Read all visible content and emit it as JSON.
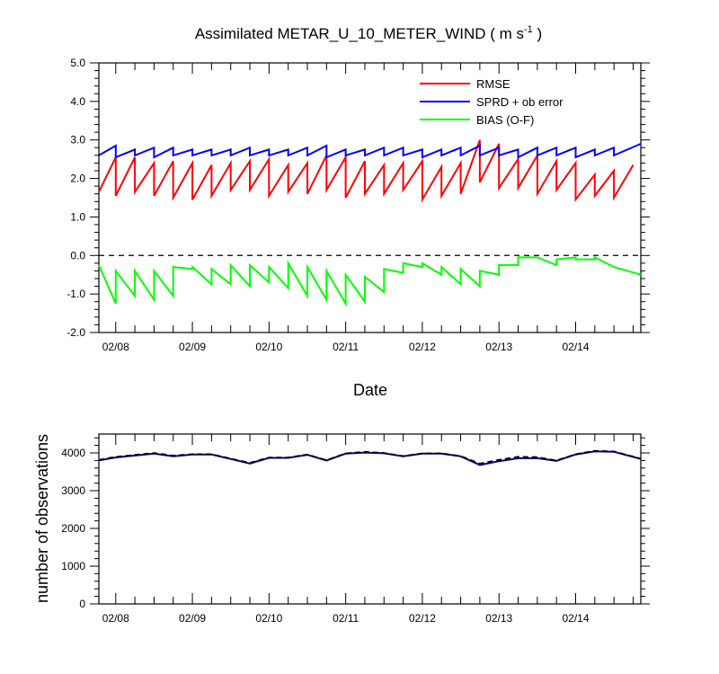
{
  "colors": {
    "rmse": "#ff0000",
    "sprd": "#0000ff",
    "bias": "#00ff00",
    "count": "#000080",
    "axis": "#000000"
  },
  "chart_data": [
    {
      "type": "line",
      "title": "Assimilated METAR_U_10_METER_WIND ( m s",
      "title_superscript": "-1",
      "title_close": " )",
      "xlabel": "Date",
      "ylabel": "",
      "ylim": [
        -2.0,
        5.0
      ],
      "xlim": [
        7.78,
        14.85
      ],
      "x_tick_labels": [
        "02/08",
        "02/09",
        "02/10",
        "02/11",
        "02/12",
        "02/13",
        "02/14"
      ],
      "x_tick_values": [
        8,
        9,
        10,
        11,
        12,
        13,
        14
      ],
      "y_tick_labels": [
        "5.0",
        "4.0",
        "3.0",
        "2.0",
        "1.0",
        "0.0",
        "-1.0",
        "-2.0"
      ],
      "y_tick_values": [
        5,
        4,
        3,
        2,
        1,
        0,
        -1,
        -2
      ],
      "zero_line": true,
      "legend_position": "top-right",
      "series": [
        {
          "name": "RMSE",
          "key": "rmse",
          "points": [
            [
              7.78,
              1.65
            ],
            [
              8.0,
              2.55
            ],
            [
              8.0,
              1.55
            ],
            [
              8.25,
              2.55
            ],
            [
              8.25,
              1.65
            ],
            [
              8.5,
              2.4
            ],
            [
              8.5,
              1.55
            ],
            [
              8.75,
              2.45
            ],
            [
              8.75,
              1.5
            ],
            [
              9.0,
              2.4
            ],
            [
              9.0,
              1.45
            ],
            [
              9.25,
              2.35
            ],
            [
              9.25,
              1.55
            ],
            [
              9.5,
              2.4
            ],
            [
              9.5,
              1.7
            ],
            [
              9.75,
              2.45
            ],
            [
              9.75,
              1.7
            ],
            [
              10.0,
              2.5
            ],
            [
              10.0,
              1.55
            ],
            [
              10.25,
              2.35
            ],
            [
              10.25,
              1.65
            ],
            [
              10.5,
              2.4
            ],
            [
              10.5,
              1.6
            ],
            [
              10.75,
              2.6
            ],
            [
              10.75,
              1.7
            ],
            [
              11.0,
              2.55
            ],
            [
              11.0,
              1.5
            ],
            [
              11.25,
              2.45
            ],
            [
              11.25,
              1.6
            ],
            [
              11.5,
              2.35
            ],
            [
              11.5,
              1.6
            ],
            [
              11.75,
              2.4
            ],
            [
              11.75,
              1.7
            ],
            [
              12.0,
              2.45
            ],
            [
              12.0,
              1.45
            ],
            [
              12.25,
              2.3
            ],
            [
              12.25,
              1.55
            ],
            [
              12.5,
              2.4
            ],
            [
              12.5,
              1.6
            ],
            [
              12.75,
              3.0
            ],
            [
              12.75,
              1.9
            ],
            [
              13.0,
              2.9
            ],
            [
              13.0,
              1.75
            ],
            [
              13.25,
              2.5
            ],
            [
              13.25,
              1.75
            ],
            [
              13.5,
              2.6
            ],
            [
              13.5,
              1.6
            ],
            [
              13.75,
              2.45
            ],
            [
              13.75,
              1.7
            ],
            [
              14.0,
              2.4
            ],
            [
              14.0,
              1.45
            ],
            [
              14.25,
              2.1
            ],
            [
              14.25,
              1.55
            ],
            [
              14.5,
              2.2
            ],
            [
              14.5,
              1.5
            ],
            [
              14.75,
              2.35
            ]
          ]
        },
        {
          "name": "SPRD + ob error",
          "key": "sprd",
          "points": [
            [
              7.78,
              2.6
            ],
            [
              8.0,
              2.85
            ],
            [
              8.0,
              2.55
            ],
            [
              8.25,
              2.75
            ],
            [
              8.25,
              2.6
            ],
            [
              8.5,
              2.8
            ],
            [
              8.5,
              2.55
            ],
            [
              8.75,
              2.8
            ],
            [
              8.75,
              2.6
            ],
            [
              9.0,
              2.75
            ],
            [
              9.0,
              2.6
            ],
            [
              9.25,
              2.75
            ],
            [
              9.25,
              2.6
            ],
            [
              9.5,
              2.75
            ],
            [
              9.5,
              2.6
            ],
            [
              9.75,
              2.8
            ],
            [
              9.75,
              2.6
            ],
            [
              10.0,
              2.75
            ],
            [
              10.0,
              2.6
            ],
            [
              10.25,
              2.75
            ],
            [
              10.25,
              2.6
            ],
            [
              10.5,
              2.8
            ],
            [
              10.5,
              2.6
            ],
            [
              10.75,
              2.85
            ],
            [
              10.75,
              2.55
            ],
            [
              11.0,
              2.75
            ],
            [
              11.0,
              2.6
            ],
            [
              11.25,
              2.75
            ],
            [
              11.25,
              2.6
            ],
            [
              11.5,
              2.8
            ],
            [
              11.5,
              2.6
            ],
            [
              11.75,
              2.8
            ],
            [
              11.75,
              2.6
            ],
            [
              12.0,
              2.75
            ],
            [
              12.0,
              2.55
            ],
            [
              12.25,
              2.75
            ],
            [
              12.25,
              2.6
            ],
            [
              12.5,
              2.8
            ],
            [
              12.5,
              2.6
            ],
            [
              12.75,
              2.85
            ],
            [
              12.75,
              2.6
            ],
            [
              13.0,
              2.8
            ],
            [
              13.0,
              2.6
            ],
            [
              13.25,
              2.75
            ],
            [
              13.25,
              2.55
            ],
            [
              13.5,
              2.8
            ],
            [
              13.5,
              2.6
            ],
            [
              13.75,
              2.8
            ],
            [
              13.75,
              2.6
            ],
            [
              14.0,
              2.8
            ],
            [
              14.0,
              2.55
            ],
            [
              14.25,
              2.75
            ],
            [
              14.25,
              2.6
            ],
            [
              14.5,
              2.8
            ],
            [
              14.5,
              2.6
            ],
            [
              14.85,
              2.9
            ]
          ]
        },
        {
          "name": "BIAS (O-F)",
          "key": "bias",
          "points": [
            [
              7.78,
              -0.25
            ],
            [
              8.0,
              -1.25
            ],
            [
              8.0,
              -0.4
            ],
            [
              8.25,
              -1.05
            ],
            [
              8.25,
              -0.4
            ],
            [
              8.5,
              -1.15
            ],
            [
              8.5,
              -0.4
            ],
            [
              8.75,
              -1.05
            ],
            [
              8.75,
              -0.3
            ],
            [
              9.0,
              -0.35
            ],
            [
              9.0,
              -0.3
            ],
            [
              9.25,
              -0.75
            ],
            [
              9.25,
              -0.35
            ],
            [
              9.5,
              -0.75
            ],
            [
              9.5,
              -0.25
            ],
            [
              9.75,
              -0.8
            ],
            [
              9.75,
              -0.25
            ],
            [
              10.0,
              -0.7
            ],
            [
              10.0,
              -0.3
            ],
            [
              10.25,
              -0.85
            ],
            [
              10.25,
              -0.2
            ],
            [
              10.5,
              -1.05
            ],
            [
              10.5,
              -0.3
            ],
            [
              10.75,
              -1.15
            ],
            [
              10.75,
              -0.4
            ],
            [
              11.0,
              -1.25
            ],
            [
              11.0,
              -0.5
            ],
            [
              11.25,
              -1.2
            ],
            [
              11.25,
              -0.55
            ],
            [
              11.5,
              -0.95
            ],
            [
              11.5,
              -0.35
            ],
            [
              11.75,
              -0.45
            ],
            [
              11.75,
              -0.2
            ],
            [
              12.0,
              -0.3
            ],
            [
              12.0,
              -0.2
            ],
            [
              12.25,
              -0.5
            ],
            [
              12.25,
              -0.3
            ],
            [
              12.5,
              -0.75
            ],
            [
              12.5,
              -0.35
            ],
            [
              12.75,
              -0.8
            ],
            [
              12.75,
              -0.4
            ],
            [
              13.0,
              -0.5
            ],
            [
              13.0,
              -0.25
            ],
            [
              13.25,
              -0.25
            ],
            [
              13.25,
              -0.05
            ],
            [
              13.5,
              -0.05
            ],
            [
              13.5,
              -0.05
            ],
            [
              13.75,
              -0.25
            ],
            [
              13.75,
              -0.1
            ],
            [
              14.0,
              -0.05
            ],
            [
              14.0,
              -0.1
            ],
            [
              14.25,
              -0.1
            ],
            [
              14.25,
              -0.05
            ],
            [
              14.5,
              -0.3
            ],
            [
              14.85,
              -0.5
            ]
          ]
        }
      ]
    },
    {
      "type": "line",
      "title": "",
      "xlabel": "",
      "ylabel": "number of observations",
      "ylim": [
        0,
        4500
      ],
      "xlim": [
        7.78,
        14.85
      ],
      "x_tick_labels": [
        "02/08",
        "02/09",
        "02/10",
        "02/11",
        "02/12",
        "02/13",
        "02/14"
      ],
      "x_tick_values": [
        8,
        9,
        10,
        11,
        12,
        13,
        14
      ],
      "y_tick_labels": [
        "4000",
        "3000",
        "2000",
        "1000",
        "0"
      ],
      "y_tick_values": [
        4000,
        3000,
        2000,
        1000,
        0
      ],
      "series": [
        {
          "key": "count",
          "style": "solid",
          "points": [
            [
              7.78,
              3800
            ],
            [
              8.0,
              3880
            ],
            [
              8.25,
              3930
            ],
            [
              8.5,
              3980
            ],
            [
              8.75,
              3910
            ],
            [
              9.0,
              3960
            ],
            [
              9.25,
              3960
            ],
            [
              9.5,
              3840
            ],
            [
              9.75,
              3720
            ],
            [
              10.0,
              3870
            ],
            [
              10.25,
              3870
            ],
            [
              10.5,
              3950
            ],
            [
              10.75,
              3800
            ],
            [
              11.0,
              3980
            ],
            [
              11.25,
              4010
            ],
            [
              11.5,
              3990
            ],
            [
              11.75,
              3910
            ],
            [
              12.0,
              3980
            ],
            [
              12.25,
              3980
            ],
            [
              12.5,
              3910
            ],
            [
              12.75,
              3680
            ],
            [
              13.0,
              3780
            ],
            [
              13.25,
              3860
            ],
            [
              13.5,
              3860
            ],
            [
              13.75,
              3790
            ],
            [
              14.0,
              3960
            ],
            [
              14.25,
              4040
            ],
            [
              14.5,
              4030
            ],
            [
              14.85,
              3840
            ]
          ]
        },
        {
          "key": "count",
          "style": "dashed",
          "points": [
            [
              7.78,
              3820
            ],
            [
              8.0,
              3900
            ],
            [
              8.25,
              3950
            ],
            [
              8.5,
              4000
            ],
            [
              8.75,
              3930
            ],
            [
              9.0,
              3970
            ],
            [
              9.25,
              3970
            ],
            [
              9.5,
              3850
            ],
            [
              9.75,
              3740
            ],
            [
              10.0,
              3880
            ],
            [
              10.25,
              3880
            ],
            [
              10.5,
              3960
            ],
            [
              10.75,
              3810
            ],
            [
              11.0,
              3990
            ],
            [
              11.25,
              4030
            ],
            [
              11.5,
              4000
            ],
            [
              11.75,
              3920
            ],
            [
              12.0,
              3990
            ],
            [
              12.25,
              3990
            ],
            [
              12.5,
              3920
            ],
            [
              12.75,
              3720
            ],
            [
              13.0,
              3820
            ],
            [
              13.25,
              3900
            ],
            [
              13.5,
              3890
            ],
            [
              13.75,
              3800
            ],
            [
              14.0,
              3970
            ],
            [
              14.25,
              4060
            ],
            [
              14.5,
              4040
            ],
            [
              14.85,
              3850
            ]
          ]
        }
      ]
    }
  ]
}
